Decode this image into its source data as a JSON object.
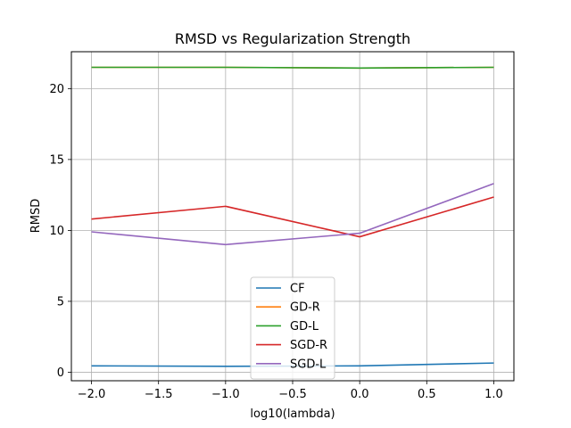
{
  "chart_data": {
    "type": "line",
    "title": "RMSD vs Regularization Strength",
    "xlabel": "log10(lambda)",
    "ylabel": "RMSD",
    "x": [
      -2,
      -1,
      0,
      1
    ],
    "xlim": [
      -2.15,
      1.15
    ],
    "ylim": [
      -0.6,
      22.6
    ],
    "xticks": [
      -2.0,
      -1.5,
      -1.0,
      -0.5,
      0.0,
      0.5,
      1.0
    ],
    "xtick_labels": [
      "−2.0",
      "−1.5",
      "−1.0",
      "−0.5",
      "0.0",
      "0.5",
      "1.0"
    ],
    "yticks": [
      0,
      5,
      10,
      15,
      20
    ],
    "ytick_labels": [
      "0",
      "5",
      "10",
      "15",
      "20"
    ],
    "grid": true,
    "legend_position": "lower-center",
    "series": [
      {
        "name": "CF",
        "color": "#1f77b4",
        "values": [
          0.45,
          0.42,
          0.45,
          0.65
        ]
      },
      {
        "name": "GD-R",
        "color": "#ff7f0e",
        "values": [
          21.5,
          21.5,
          21.45,
          21.5
        ]
      },
      {
        "name": "GD-L",
        "color": "#2ca02c",
        "values": [
          21.5,
          21.5,
          21.45,
          21.5
        ]
      },
      {
        "name": "SGD-R",
        "color": "#d62728",
        "values": [
          10.8,
          11.7,
          9.55,
          12.35
        ]
      },
      {
        "name": "SGD-L",
        "color": "#9467bd",
        "values": [
          9.9,
          9.0,
          9.8,
          13.3
        ]
      }
    ]
  }
}
